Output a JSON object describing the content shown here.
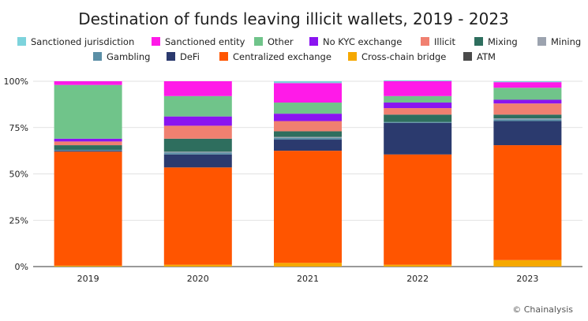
{
  "chart_data": {
    "type": "bar",
    "stacked": true,
    "normalized": true,
    "title": "Destination of funds leaving illicit wallets, 2019 - 2023",
    "categories": [
      "2019",
      "2020",
      "2021",
      "2022",
      "2023"
    ],
    "ylim": [
      0,
      100
    ],
    "yticks": [
      "0%",
      "25%",
      "50%",
      "75%",
      "100%"
    ],
    "legend_position": "top",
    "legend_order": [
      "Sanctioned jurisdiction",
      "Sanctioned entity",
      "Other",
      "No KYC exchange",
      "Illicit",
      "Mixing",
      "Mining",
      "Gambling",
      "DeFi",
      "Centralized exchange",
      "Cross-chain bridge",
      "ATM"
    ],
    "series": [
      {
        "name": "Cross-chain bridge",
        "color": "#F5A800",
        "values": [
          0.5,
          1,
          2,
          1,
          3.5
        ]
      },
      {
        "name": "Centralized exchange",
        "color": "#FF5500",
        "values": [
          61.5,
          52.5,
          60.5,
          59.5,
          62
        ]
      },
      {
        "name": "DeFi",
        "color": "#2B3A6E",
        "values": [
          0.5,
          7,
          6,
          17,
          13
        ]
      },
      {
        "name": "Gambling",
        "color": "#5B8FA6",
        "values": [
          0.5,
          1,
          1,
          0.5,
          1
        ]
      },
      {
        "name": "Mining",
        "color": "#9CA3AF",
        "values": [
          0,
          0.5,
          0.5,
          0,
          0.5
        ]
      },
      {
        "name": "Mixing",
        "color": "#2E6E5E",
        "values": [
          2.5,
          7,
          3,
          4,
          2
        ]
      },
      {
        "name": "Illicit",
        "color": "#F08070",
        "values": [
          2,
          7,
          5.5,
          3.5,
          6
        ]
      },
      {
        "name": "No KYC exchange",
        "color": "#8A14F0",
        "values": [
          1.5,
          5,
          4,
          3,
          2
        ]
      },
      {
        "name": "Other",
        "color": "#70C48A",
        "values": [
          29,
          11,
          6,
          3.5,
          6.5
        ]
      },
      {
        "name": "Sanctioned entity",
        "color": "#FF1AE8",
        "values": [
          2,
          8,
          10.5,
          8,
          3
        ]
      },
      {
        "name": "Sanctioned jurisdiction",
        "color": "#7DD3DC",
        "values": [
          0,
          0,
          1,
          0.5,
          0.5
        ]
      },
      {
        "name": "ATM",
        "color": "#4A4A4A",
        "values": [
          0,
          0,
          0,
          0,
          0
        ]
      }
    ]
  },
  "credit": "© Chainalysis"
}
